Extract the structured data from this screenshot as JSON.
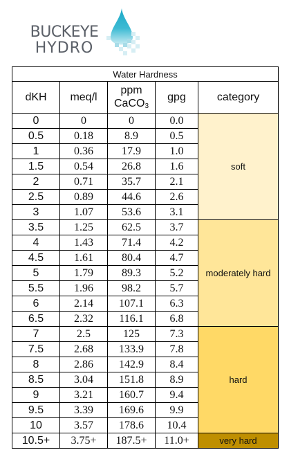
{
  "logo": {
    "line1": "BUCKEYE",
    "line2": "HYDRO"
  },
  "table": {
    "title": "Water Hardness",
    "headers": {
      "dkh": "dKH",
      "meq": "meq/l",
      "ppm": "ppm",
      "caco_main": "CaCO",
      "caco_sub": "3",
      "gpg": "gpg",
      "category": "category"
    },
    "rows": [
      [
        "0",
        "0",
        "0",
        "0.0"
      ],
      [
        "0.5",
        "0.18",
        "8.9",
        "0.5"
      ],
      [
        "1",
        "0.36",
        "17.9",
        "1.0"
      ],
      [
        "1.5",
        "0.54",
        "26.8",
        "1.6"
      ],
      [
        "2",
        "0.71",
        "35.7",
        "2.1"
      ],
      [
        "2.5",
        "0.89",
        "44.6",
        "2.6"
      ],
      [
        "3",
        "1.07",
        "53.6",
        "3.1"
      ],
      [
        "3.5",
        "1.25",
        "62.5",
        "3.7"
      ],
      [
        "4",
        "1.43",
        "71.4",
        "4.2"
      ],
      [
        "4.5",
        "1.61",
        "80.4",
        "4.7"
      ],
      [
        "5",
        "1.79",
        "89.3",
        "5.2"
      ],
      [
        "5.5",
        "1.96",
        "98.2",
        "5.7"
      ],
      [
        "6",
        "2.14",
        "107.1",
        "6.3"
      ],
      [
        "6.5",
        "2.32",
        "116.1",
        "6.8"
      ],
      [
        "7",
        "2.5",
        "125",
        "7.3"
      ],
      [
        "7.5",
        "2.68",
        "133.9",
        "7.8"
      ],
      [
        "8",
        "2.86",
        "142.9",
        "8.4"
      ],
      [
        "8.5",
        "3.04",
        "151.8",
        "8.9"
      ],
      [
        "9",
        "3.21",
        "160.7",
        "9.4"
      ],
      [
        "9.5",
        "3.39",
        "169.6",
        "9.9"
      ],
      [
        "10",
        "3.57",
        "178.6",
        "10.4"
      ],
      [
        "10.5+",
        "3.75+",
        "187.5+",
        "11.0+"
      ]
    ],
    "categories": [
      {
        "label": "soft",
        "span": 7,
        "color": "#fff2cc",
        "cls": "soft"
      },
      {
        "label": "moderately hard",
        "span": 7,
        "color": "#ffe699",
        "cls": "mod"
      },
      {
        "label": "hard",
        "span": 7,
        "color": "#ffd966",
        "cls": "hard"
      },
      {
        "label": "very hard",
        "span": 1,
        "color": "#bf8f00",
        "cls": "vhard"
      }
    ]
  },
  "colors": {
    "logo_text": "#5b6068",
    "logo_drop_top": "#1aa9c7",
    "logo_drop_light": "#a8dce8"
  }
}
